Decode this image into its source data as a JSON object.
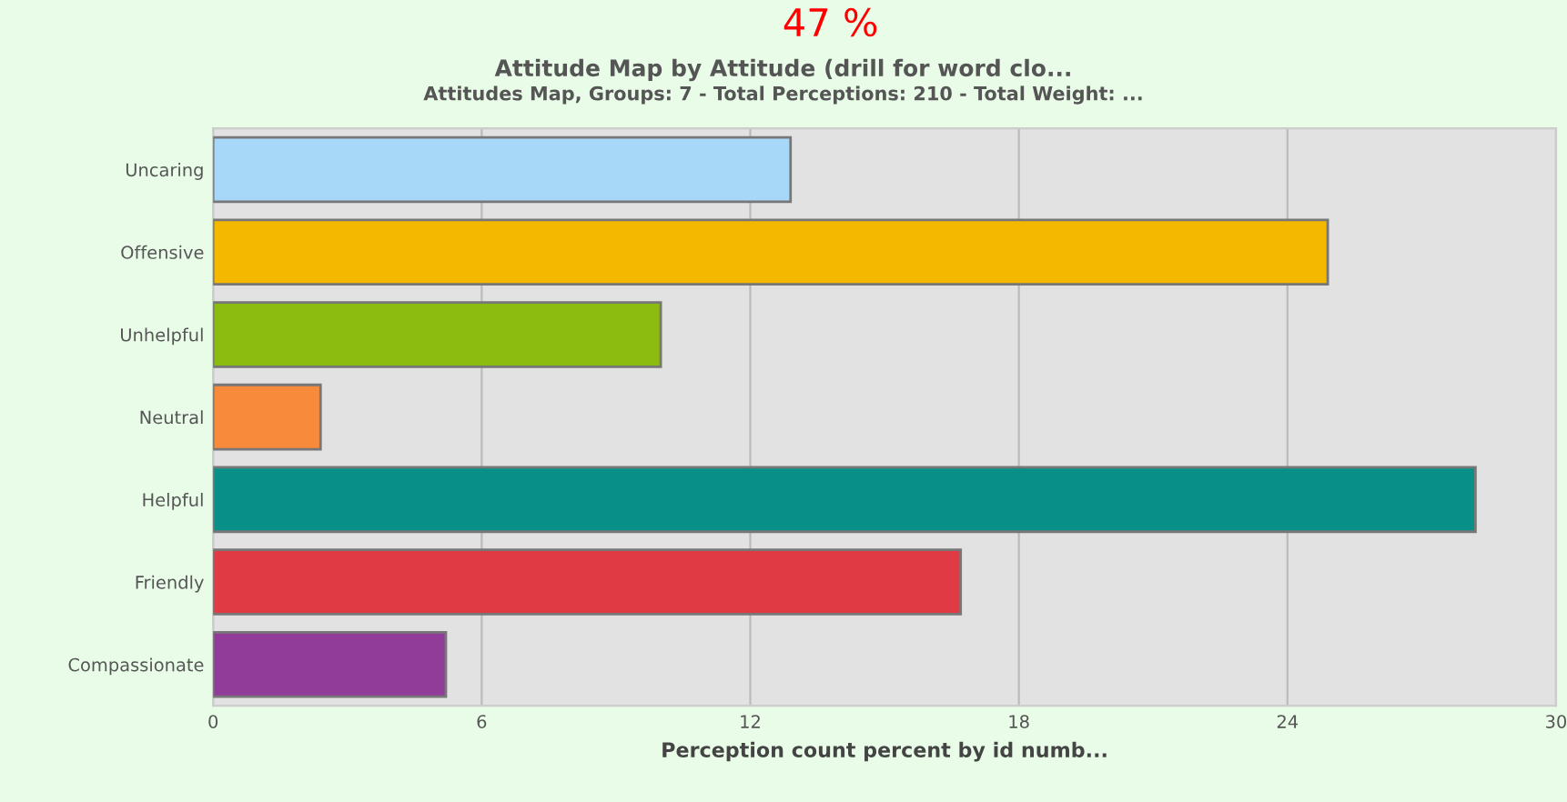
{
  "chart_data": {
    "type": "bar",
    "orientation": "horizontal",
    "title": "Attitude Map by Attitude (drill for word clo...",
    "subtitle": "Attitudes Map, Groups: 7 - Total Perceptions: 210 - Total Weight: ...",
    "xlabel": "Perception count percent by id numb...",
    "categories": [
      "Uncaring",
      "Offensive",
      "Unhelpful",
      "Neutral",
      "Helpful",
      "Friendly",
      "Compassionate"
    ],
    "values": [
      12.9,
      24.9,
      10.0,
      2.4,
      28.2,
      16.7,
      5.2
    ],
    "colors": [
      "#a8d8f8",
      "#f5b800",
      "#8cbc10",
      "#f88a3c",
      "#089088",
      "#e03a44",
      "#903c98"
    ],
    "xlim": [
      0,
      30
    ],
    "xticks": [
      0,
      6,
      12,
      18,
      24,
      30
    ],
    "grid": "x",
    "legend": false,
    "annotations": [
      "47 %"
    ]
  }
}
